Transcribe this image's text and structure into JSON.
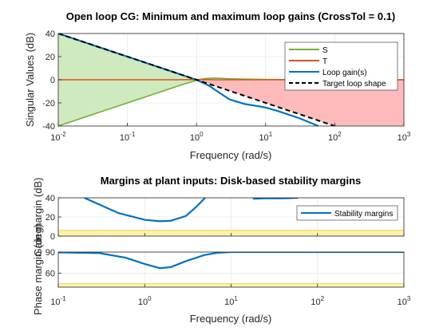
{
  "chart_data": [
    {
      "type": "line",
      "title": "Open loop CG: Minimum and maximum loop gains (CrossTol = 0.1)",
      "xlabel": "Frequency (rad/s)",
      "ylabel": "Singular Values (dB)",
      "xscale": "log",
      "xlim": [
        0.01,
        1000
      ],
      "ylim": [
        -40,
        40
      ],
      "x_ticks": [
        "10",
        "10",
        "10",
        "10",
        "10",
        "10"
      ],
      "x_tick_exponents": [
        "-2",
        "-1",
        "0",
        "1",
        "2",
        "3"
      ],
      "y_ticks": [
        "-40",
        "-20",
        "0",
        "20",
        "40"
      ],
      "grid": true,
      "legend_position": "top-right",
      "colors": {
        "S": "#77ac30",
        "T": "#d95319",
        "Loop": "#0072bd",
        "Target": "#000000",
        "shade_green": "#c8e6b4",
        "shade_red": "#ffb4b4"
      },
      "series": [
        {
          "name": "S",
          "x": [
            0.01,
            0.1,
            0.3,
            0.6,
            1.0,
            1.3,
            1.8,
            3.0,
            10,
            100,
            1000
          ],
          "values": [
            -40,
            -20,
            -10.5,
            -4.5,
            -0.5,
            1.0,
            1.5,
            0.8,
            0.2,
            0,
            0
          ]
        },
        {
          "name": "T",
          "x": [
            0.01,
            0.1,
            0.5,
            0.8,
            1.0,
            1.2,
            2.0,
            5.0,
            10,
            100,
            1000
          ],
          "values": [
            0,
            0,
            0,
            0.1,
            0.2,
            0.2,
            0,
            0,
            0,
            0,
            0
          ]
        },
        {
          "name": "Loop gain(s)",
          "x": [
            0.01,
            0.1,
            0.5,
            1.0,
            1.5,
            2.0,
            3.0,
            5.0,
            8.0,
            10,
            15,
            30,
            58
          ],
          "values": [
            40,
            20,
            6,
            0,
            -5,
            -10,
            -17,
            -21,
            -23,
            -24,
            -27,
            -33,
            -40
          ]
        },
        {
          "name": "Target loop shape",
          "x": [
            0.01,
            1000
          ],
          "values": [
            40,
            -60
          ]
        }
      ]
    },
    {
      "type": "line",
      "title": "Margins at plant inputs: Disk-based stability margins",
      "xlabel": "Frequency (rad/s)",
      "ylabel_gain": "Gain margin (dB)",
      "ylabel_phase": "Phase margin (deg)",
      "xscale": "log",
      "xlim": [
        0.1,
        1000
      ],
      "gain_ylim": [
        0,
        40
      ],
      "phase_ylim": [
        40,
        90
      ],
      "x_ticks": [
        "10",
        "10",
        "10",
        "10",
        "10"
      ],
      "x_tick_exponents": [
        "-1",
        "0",
        "1",
        "2",
        "3"
      ],
      "gain_y_ticks": [
        "0",
        "20",
        "40"
      ],
      "phase_y_ticks": [
        "60",
        "90"
      ],
      "grid": true,
      "legend_position": "right",
      "colors": {
        "margin": "#0072bd",
        "band": "#fff2a8"
      },
      "series": [
        {
          "name": "Stability margins",
          "panel": "gain",
          "segments": [
            {
              "x": [
                0.2,
                0.5,
                1.0,
                1.5,
                2.0,
                3.0,
                4.0,
                5.0
              ],
              "values": [
                40,
                24,
                17,
                15.5,
                16,
                21,
                31,
                40
              ]
            },
            {
              "x": [
                18,
                25,
                40,
                60
              ],
              "values": [
                39,
                39.5,
                39.5,
                40
              ]
            }
          ]
        },
        {
          "name": "Stability margins",
          "panel": "phase",
          "x": [
            0.1,
            0.3,
            0.6,
            1.0,
            1.5,
            2.0,
            3.0,
            5.0,
            7.0,
            10,
            30,
            100,
            1000
          ],
          "values": [
            89.5,
            88.5,
            82,
            73,
            67,
            68.5,
            77,
            86,
            89,
            90,
            90,
            90,
            90
          ]
        }
      ],
      "bands": [
        {
          "panel": "gain",
          "range": [
            0,
            6
          ]
        },
        {
          "panel": "phase",
          "range": [
            40,
            45
          ]
        }
      ]
    }
  ]
}
